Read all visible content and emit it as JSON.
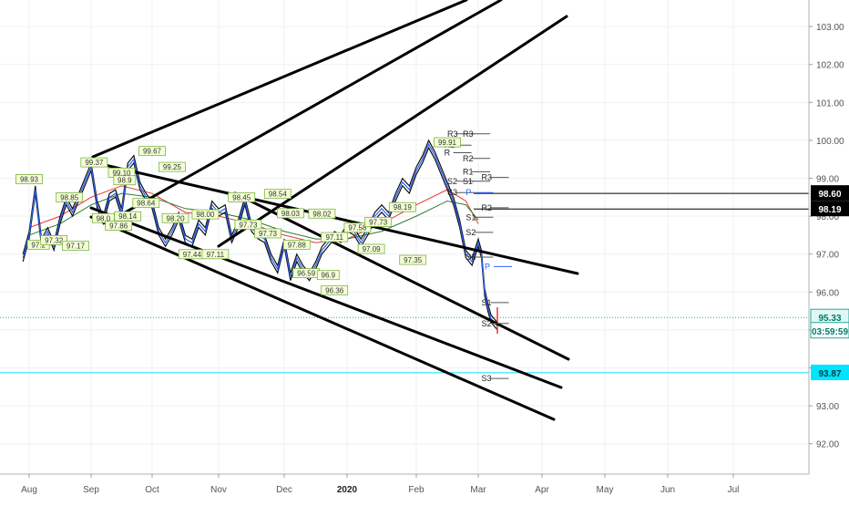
{
  "chart_data": {
    "type": "line",
    "title": "",
    "xlabel": "",
    "ylabel": "",
    "x_ticks": [
      "Aug",
      "Sep",
      "Oct",
      "Nov",
      "Dec",
      "2020",
      "Feb",
      "Mar",
      "Apr",
      "May",
      "Jun",
      "Jul"
    ],
    "y_ticks": [
      "92.00",
      "93.00",
      "94.00",
      "95.00",
      "96.00",
      "97.00",
      "98.00",
      "99.00",
      "100.00",
      "101.00",
      "102.00",
      "103.00"
    ],
    "ylim": [
      91.2,
      103.7
    ],
    "grid": true,
    "price_labels": [
      {
        "label": "98.60",
        "value": 98.6,
        "style": "dark"
      },
      {
        "label": "98.19",
        "value": 98.19,
        "style": "dark"
      },
      {
        "label": "95.33",
        "value": 95.33,
        "style": "green"
      },
      {
        "label": "03:59:59",
        "value": 94.98,
        "style": "green-outline"
      },
      {
        "label": "93.87",
        "value": 93.87,
        "style": "cyan"
      }
    ],
    "horizontal_lines": [
      {
        "value": 98.6,
        "color": "#000000"
      },
      {
        "value": 98.19,
        "color": "#000000"
      },
      {
        "value": 95.33,
        "color": "#26a69a",
        "dotted": true
      },
      {
        "value": 93.87,
        "color": "#00e5ff"
      }
    ],
    "price_series": {
      "x_month_index": [
        -0.1,
        0.0,
        0.1,
        0.2,
        0.3,
        0.4,
        0.5,
        0.6,
        0.7,
        0.8,
        1.0,
        1.1,
        1.2,
        1.3,
        1.4,
        1.5,
        1.6,
        1.7,
        1.8,
        1.9,
        2.0,
        2.1,
        2.2,
        2.3,
        2.4,
        2.5,
        2.6,
        2.7,
        2.8,
        2.9,
        3.0,
        3.1,
        3.2,
        3.3,
        3.4,
        3.5,
        3.6,
        3.7,
        3.8,
        3.9,
        4.0,
        4.1,
        4.2,
        4.3,
        4.4,
        4.5,
        4.6,
        4.7,
        4.8,
        4.9,
        5.0,
        5.1,
        5.2,
        5.3,
        5.4,
        5.5,
        5.6,
        5.7,
        5.8,
        5.9,
        6.0,
        6.1,
        6.2,
        6.3,
        6.4,
        6.5,
        6.6,
        6.7,
        6.8,
        6.9,
        7.0,
        7.05,
        7.1,
        7.15,
        7.2,
        7.25,
        7.3
      ],
      "values": [
        96.9,
        97.5,
        98.7,
        97.3,
        97.6,
        97.2,
        97.9,
        98.4,
        98.1,
        98.5,
        99.3,
        98.3,
        97.9,
        98.5,
        98.6,
        98.1,
        99.3,
        99.5,
        98.8,
        98.5,
        98.3,
        97.6,
        97.3,
        97.6,
        98.0,
        97.4,
        97.3,
        97.8,
        97.6,
        98.3,
        98.1,
        98.2,
        97.4,
        97.8,
        98.4,
        97.7,
        97.5,
        97.4,
        96.9,
        96.6,
        97.3,
        96.4,
        96.9,
        96.6,
        96.4,
        96.7,
        97.1,
        97.3,
        97.5,
        97.4,
        97.7,
        97.6,
        97.3,
        97.6,
        98.0,
        98.2,
        98.0,
        98.5,
        98.9,
        98.7,
        99.2,
        99.5,
        99.9,
        99.6,
        99.2,
        98.8,
        98.4,
        97.8,
        97.0,
        96.8,
        97.3,
        97.0,
        96.0,
        95.6,
        95.3,
        95.2,
        95.1
      ]
    },
    "moving_averages": [
      {
        "color": "#e53935",
        "x_month_index": [
          0.0,
          0.5,
          1.0,
          1.5,
          2.0,
          2.5,
          3.0,
          3.5,
          4.0,
          4.5,
          5.0,
          5.5,
          6.0,
          6.5,
          6.8,
          7.0
        ],
        "values": [
          97.7,
          98.0,
          98.5,
          98.8,
          98.6,
          98.1,
          98.0,
          97.8,
          97.5,
          97.3,
          97.4,
          97.8,
          98.3,
          98.7,
          98.4,
          97.8
        ]
      },
      {
        "color": "#2e7d32",
        "x_month_index": [
          0.0,
          0.5,
          1.0,
          1.5,
          2.0,
          2.5,
          3.0,
          3.5,
          4.0,
          4.5,
          5.0,
          5.5,
          6.0,
          6.5,
          6.8,
          7.0
        ],
        "values": [
          97.5,
          97.8,
          98.3,
          98.6,
          98.5,
          98.2,
          98.1,
          97.9,
          97.6,
          97.4,
          97.4,
          97.6,
          98.0,
          98.4,
          98.3,
          97.9
        ]
      }
    ],
    "point_labels": [
      {
        "text": "98.93",
        "x": 0.0,
        "y": 98.93
      },
      {
        "text": "97.2",
        "x": 0.15,
        "y": 97.2
      },
      {
        "text": "97.32",
        "x": 0.4,
        "y": 97.32
      },
      {
        "text": "97.17",
        "x": 0.75,
        "y": 97.17
      },
      {
        "text": "98.85",
        "x": 0.65,
        "y": 98.45
      },
      {
        "text": "99.37",
        "x": 1.05,
        "y": 99.37
      },
      {
        "text": "99.10",
        "x": 1.5,
        "y": 99.1
      },
      {
        "text": "98.9",
        "x": 1.55,
        "y": 98.9
      },
      {
        "text": "98.0",
        "x": 1.2,
        "y": 97.9
      },
      {
        "text": "97.86",
        "x": 1.45,
        "y": 97.7
      },
      {
        "text": "98.14",
        "x": 1.6,
        "y": 97.95
      },
      {
        "text": "98.64",
        "x": 1.9,
        "y": 98.3
      },
      {
        "text": "99.67",
        "x": 2.0,
        "y": 99.67
      },
      {
        "text": "99.25",
        "x": 2.3,
        "y": 99.25
      },
      {
        "text": "98.20",
        "x": 2.35,
        "y": 97.9
      },
      {
        "text": "98.00",
        "x": 2.8,
        "y": 98.0
      },
      {
        "text": "97.44",
        "x": 2.6,
        "y": 96.95
      },
      {
        "text": "97.11",
        "x": 2.95,
        "y": 96.95
      },
      {
        "text": "98.45",
        "x": 3.35,
        "y": 98.45
      },
      {
        "text": "97.73",
        "x": 3.45,
        "y": 97.73
      },
      {
        "text": "97.73",
        "x": 3.75,
        "y": 97.5
      },
      {
        "text": "98.54",
        "x": 3.9,
        "y": 98.54
      },
      {
        "text": "98.03",
        "x": 4.1,
        "y": 98.03
      },
      {
        "text": "97.88",
        "x": 4.2,
        "y": 97.2
      },
      {
        "text": "96.59",
        "x": 4.35,
        "y": 96.45
      },
      {
        "text": "98.02",
        "x": 4.6,
        "y": 98.02
      },
      {
        "text": "97.11",
        "x": 4.8,
        "y": 97.4
      },
      {
        "text": "96.9",
        "x": 4.7,
        "y": 96.4
      },
      {
        "text": "96.36",
        "x": 4.8,
        "y": 96.0
      },
      {
        "text": "97.58",
        "x": 5.15,
        "y": 97.65
      },
      {
        "text": "97.73",
        "x": 5.45,
        "y": 97.8
      },
      {
        "text": "97.09",
        "x": 5.35,
        "y": 97.09
      },
      {
        "text": "98.19",
        "x": 5.8,
        "y": 98.19
      },
      {
        "text": "97.35",
        "x": 5.95,
        "y": 96.8
      },
      {
        "text": "99.91",
        "x": 6.5,
        "y": 99.9
      }
    ],
    "pivot_labels": [
      {
        "text": "R3",
        "x": 6.5,
        "y": 100.1
      },
      {
        "text": "R3",
        "x": 6.75,
        "y": 100.1
      },
      {
        "text": "R2",
        "x": 6.45,
        "y": 99.8
      },
      {
        "text": "R",
        "x": 6.45,
        "y": 99.6
      },
      {
        "text": "R2",
        "x": 6.75,
        "y": 99.45
      },
      {
        "text": "R1",
        "x": 6.75,
        "y": 99.1
      },
      {
        "text": "R3",
        "x": 7.05,
        "y": 98.95
      },
      {
        "text": "S2",
        "x": 6.5,
        "y": 98.85
      },
      {
        "text": "S1",
        "x": 6.75,
        "y": 98.85
      },
      {
        "text": "S3",
        "x": 6.5,
        "y": 98.55
      },
      {
        "text": "P",
        "x": 6.8,
        "y": 98.55
      },
      {
        "text": "R2",
        "x": 7.05,
        "y": 98.15
      },
      {
        "text": "S1",
        "x": 6.8,
        "y": 97.9
      },
      {
        "text": "S2",
        "x": 6.8,
        "y": 97.5
      },
      {
        "text": "S3",
        "x": 6.8,
        "y": 96.85
      },
      {
        "text": "P",
        "x": 7.1,
        "y": 96.6
      },
      {
        "text": "S1",
        "x": 7.05,
        "y": 95.65
      },
      {
        "text": "S2",
        "x": 7.05,
        "y": 95.1
      },
      {
        "text": "S3",
        "x": 7.05,
        "y": 93.65
      }
    ]
  }
}
